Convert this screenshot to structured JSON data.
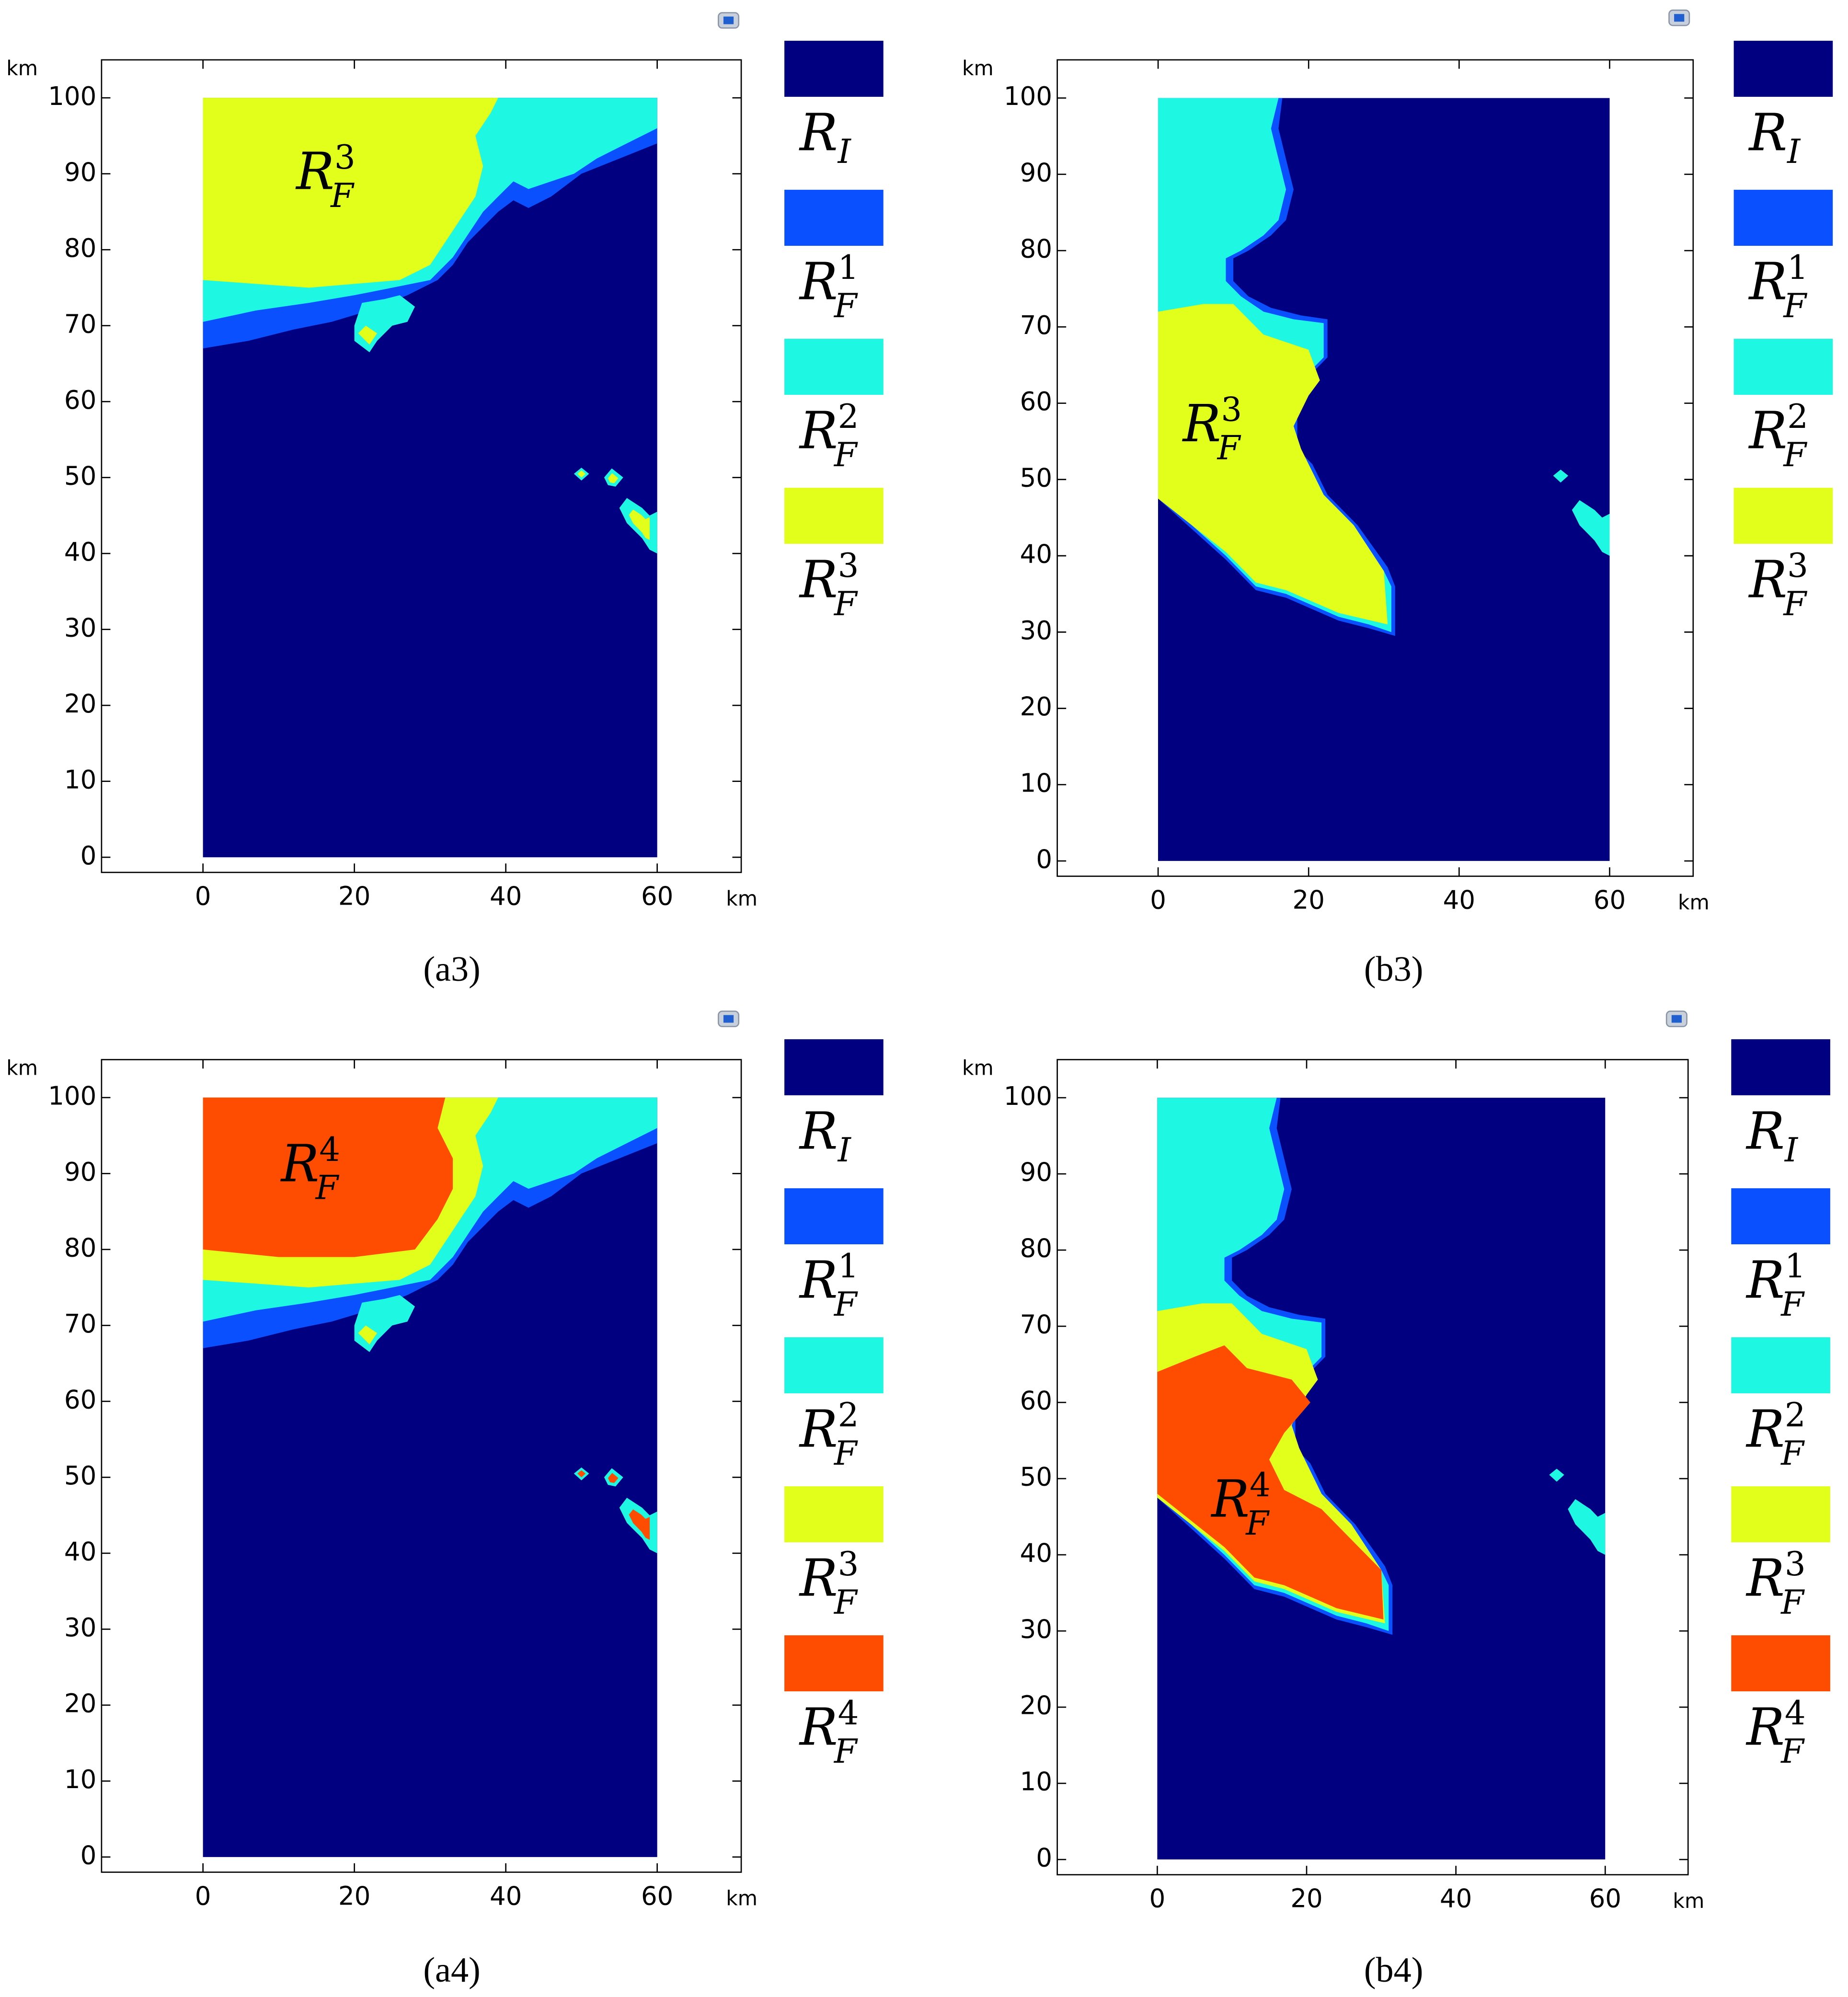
{
  "chart_data": [
    {
      "type": "map",
      "caption": "(a3)",
      "xlabel": "km",
      "ylabel": "km",
      "xlim": [
        -13.4,
        71.1
      ],
      "ylim": [
        -2,
        105
      ],
      "xticks": [
        0,
        20,
        40,
        60
      ],
      "yticks": [
        0,
        10,
        20,
        30,
        40,
        50,
        60,
        70,
        80,
        90,
        100
      ],
      "annotation": {
        "name": "R",
        "subscript": "F",
        "superscript": "3"
      },
      "series": [
        {
          "name": "R",
          "subscript": "I",
          "color": "#000080"
        },
        {
          "name": "R",
          "subscript": "F",
          "superscript": "1",
          "color": "#0a50ff"
        },
        {
          "name": "R",
          "subscript": "F",
          "superscript": "2",
          "color": "#1ef8e2"
        },
        {
          "name": "R",
          "subscript": "F",
          "superscript": "3",
          "color": "#e2ff1c"
        }
      ]
    },
    {
      "type": "map",
      "caption": "(b3)",
      "xlabel": "km",
      "ylabel": "km",
      "xlim": [
        -13.4,
        71.1
      ],
      "ylim": [
        -2,
        105
      ],
      "xticks": [
        0,
        20,
        40,
        60
      ],
      "yticks": [
        0,
        10,
        20,
        30,
        40,
        50,
        60,
        70,
        80,
        90,
        100
      ],
      "annotation": {
        "name": "R",
        "subscript": "F",
        "superscript": "3"
      },
      "series": [
        {
          "name": "R",
          "subscript": "I",
          "color": "#000080"
        },
        {
          "name": "R",
          "subscript": "F",
          "superscript": "1",
          "color": "#0a50ff"
        },
        {
          "name": "R",
          "subscript": "F",
          "superscript": "2",
          "color": "#1ef8e2"
        },
        {
          "name": "R",
          "subscript": "F",
          "superscript": "3",
          "color": "#e2ff1c"
        }
      ]
    },
    {
      "type": "map",
      "caption": "(a4)",
      "xlabel": "km",
      "ylabel": "km",
      "xlim": [
        -13.4,
        71.1
      ],
      "ylim": [
        -2,
        105
      ],
      "xticks": [
        0,
        20,
        40,
        60
      ],
      "yticks": [
        0,
        10,
        20,
        30,
        40,
        50,
        60,
        70,
        80,
        90,
        100
      ],
      "annotation": {
        "name": "R",
        "subscript": "F",
        "superscript": "4"
      },
      "series": [
        {
          "name": "R",
          "subscript": "I",
          "color": "#000080"
        },
        {
          "name": "R",
          "subscript": "F",
          "superscript": "1",
          "color": "#0a50ff"
        },
        {
          "name": "R",
          "subscript": "F",
          "superscript": "2",
          "color": "#1ef8e2"
        },
        {
          "name": "R",
          "subscript": "F",
          "superscript": "3",
          "color": "#e2ff1c"
        },
        {
          "name": "R",
          "subscript": "F",
          "superscript": "4",
          "color": "#ff4d00"
        }
      ]
    },
    {
      "type": "map",
      "caption": "(b4)",
      "xlabel": "km",
      "ylabel": "km",
      "xlim": [
        -13.4,
        71.1
      ],
      "ylim": [
        -2,
        105
      ],
      "xticks": [
        0,
        20,
        40,
        60
      ],
      "yticks": [
        0,
        10,
        20,
        30,
        40,
        50,
        60,
        70,
        80,
        90,
        100
      ],
      "annotation": {
        "name": "R",
        "subscript": "F",
        "superscript": "4"
      },
      "series": [
        {
          "name": "R",
          "subscript": "I",
          "color": "#000080"
        },
        {
          "name": "R",
          "subscript": "F",
          "superscript": "1",
          "color": "#0a50ff"
        },
        {
          "name": "R",
          "subscript": "F",
          "superscript": "2",
          "color": "#1ef8e2"
        },
        {
          "name": "R",
          "subscript": "F",
          "superscript": "3",
          "color": "#e2ff1c"
        },
        {
          "name": "R",
          "subscript": "F",
          "superscript": "4",
          "color": "#ff4d00"
        }
      ]
    }
  ]
}
